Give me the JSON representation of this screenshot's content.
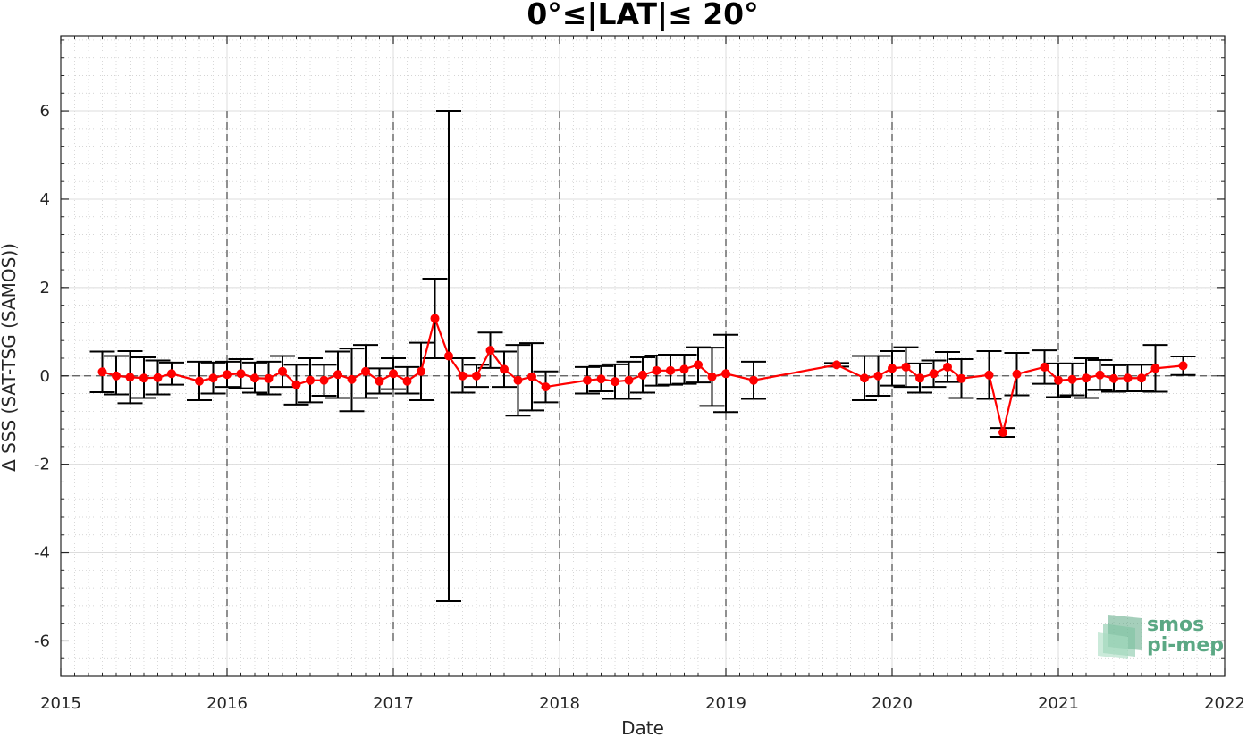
{
  "chart_data": {
    "type": "line",
    "title": "0°≤|LAT|≤ 20°",
    "xlabel": "Date",
    "ylabel": "Δ SSS (SAT-TSG (SAMOS))",
    "xlim": [
      2015,
      2022
    ],
    "ylim": [
      -6.8,
      7.7
    ],
    "x_ticks": [
      "2015",
      "2016",
      "2017",
      "2018",
      "2019",
      "2020",
      "2021",
      "2022"
    ],
    "y_ticks": [
      "-6",
      "-4",
      "-2",
      "0",
      "2",
      "4",
      "6"
    ],
    "grid": true,
    "reference_line_y": 0,
    "year_divider_lines": [
      "2016",
      "2017",
      "2018",
      "2019",
      "2020",
      "2021"
    ],
    "series": [
      {
        "color": "#ff0000",
        "errorbar_color": "#000000",
        "points": [
          {
            "x": "2015-04",
            "y": 0.09,
            "low": -0.37,
            "high": 0.55
          },
          {
            "x": "2015-05",
            "y": 0.0,
            "low": -0.42,
            "high": 0.45
          },
          {
            "x": "2015-06",
            "y": -0.03,
            "low": -0.62,
            "high": 0.56
          },
          {
            "x": "2015-07",
            "y": -0.05,
            "low": -0.5,
            "high": 0.42
          },
          {
            "x": "2015-08",
            "y": -0.04,
            "low": -0.42,
            "high": 0.35
          },
          {
            "x": "2015-09",
            "y": 0.05,
            "low": -0.2,
            "high": 0.3
          },
          {
            "x": "2015-11",
            "y": -0.12,
            "low": -0.55,
            "high": 0.32
          },
          {
            "x": "2015-12",
            "y": -0.05,
            "low": -0.4,
            "high": 0.3
          },
          {
            "x": "2016-01",
            "y": 0.03,
            "low": -0.25,
            "high": 0.32
          },
          {
            "x": "2016-02",
            "y": 0.05,
            "low": -0.28,
            "high": 0.38
          },
          {
            "x": "2016-03",
            "y": -0.05,
            "low": -0.38,
            "high": 0.3
          },
          {
            "x": "2016-04",
            "y": -0.06,
            "low": -0.42,
            "high": 0.32
          },
          {
            "x": "2016-05",
            "y": 0.1,
            "low": -0.25,
            "high": 0.45
          },
          {
            "x": "2016-06",
            "y": -0.2,
            "low": -0.65,
            "high": 0.25
          },
          {
            "x": "2016-07",
            "y": -0.1,
            "low": -0.6,
            "high": 0.4
          },
          {
            "x": "2016-08",
            "y": -0.1,
            "low": -0.45,
            "high": 0.25
          },
          {
            "x": "2016-09",
            "y": 0.03,
            "low": -0.5,
            "high": 0.55
          },
          {
            "x": "2016-10",
            "y": -0.08,
            "low": -0.8,
            "high": 0.62
          },
          {
            "x": "2016-11",
            "y": 0.1,
            "low": -0.5,
            "high": 0.7
          },
          {
            "x": "2016-12",
            "y": -0.12,
            "low": -0.4,
            "high": 0.17
          },
          {
            "x": "2017-01",
            "y": 0.05,
            "low": -0.3,
            "high": 0.4
          },
          {
            "x": "2017-02",
            "y": -0.12,
            "low": -0.4,
            "high": 0.2
          },
          {
            "x": "2017-03",
            "y": 0.1,
            "low": -0.55,
            "high": 0.75
          },
          {
            "x": "2017-04",
            "y": 1.3,
            "low": 0.4,
            "high": 2.2
          },
          {
            "x": "2017-05",
            "y": 0.45,
            "low": -5.1,
            "high": 6.0
          },
          {
            "x": "2017-06",
            "y": 0.0,
            "low": -0.38,
            "high": 0.4
          },
          {
            "x": "2017-07",
            "y": 0.0,
            "low": -0.25,
            "high": 0.25
          },
          {
            "x": "2017-08",
            "y": 0.58,
            "low": 0.18,
            "high": 0.98
          },
          {
            "x": "2017-09",
            "y": 0.15,
            "low": -0.25,
            "high": 0.55
          },
          {
            "x": "2017-10",
            "y": -0.1,
            "low": -0.9,
            "high": 0.7
          },
          {
            "x": "2017-11",
            "y": -0.02,
            "low": -0.78,
            "high": 0.74
          },
          {
            "x": "2017-12",
            "y": -0.25,
            "low": -0.6,
            "high": 0.1
          },
          {
            "x": "2018-03",
            "y": -0.1,
            "low": -0.4,
            "high": 0.2
          },
          {
            "x": "2018-04",
            "y": -0.07,
            "low": -0.35,
            "high": 0.22
          },
          {
            "x": "2018-05",
            "y": -0.13,
            "low": -0.52,
            "high": 0.26
          },
          {
            "x": "2018-06",
            "y": -0.1,
            "low": -0.52,
            "high": 0.32
          },
          {
            "x": "2018-07",
            "y": 0.02,
            "low": -0.38,
            "high": 0.42
          },
          {
            "x": "2018-08",
            "y": 0.12,
            "low": -0.22,
            "high": 0.46
          },
          {
            "x": "2018-09",
            "y": 0.12,
            "low": -0.2,
            "high": 0.48
          },
          {
            "x": "2018-10",
            "y": 0.15,
            "low": -0.18,
            "high": 0.48
          },
          {
            "x": "2018-11",
            "y": 0.25,
            "low": -0.15,
            "high": 0.65
          },
          {
            "x": "2018-12",
            "y": -0.02,
            "low": -0.68,
            "high": 0.64
          },
          {
            "x": "2019-01",
            "y": 0.05,
            "low": -0.82,
            "high": 0.93
          },
          {
            "x": "2019-03",
            "y": -0.1,
            "low": -0.52,
            "high": 0.32
          },
          {
            "x": "2019-09",
            "y": 0.25,
            "low": 0.21,
            "high": 0.29
          },
          {
            "x": "2019-11",
            "y": -0.05,
            "low": -0.55,
            "high": 0.45
          },
          {
            "x": "2019-12",
            "y": 0.0,
            "low": -0.45,
            "high": 0.45
          },
          {
            "x": "2020-01",
            "y": 0.17,
            "low": -0.22,
            "high": 0.56
          },
          {
            "x": "2020-02",
            "y": 0.2,
            "low": -0.25,
            "high": 0.65
          },
          {
            "x": "2020-03",
            "y": -0.05,
            "low": -0.38,
            "high": 0.28
          },
          {
            "x": "2020-04",
            "y": 0.05,
            "low": -0.25,
            "high": 0.35
          },
          {
            "x": "2020-05",
            "y": 0.2,
            "low": -0.14,
            "high": 0.54
          },
          {
            "x": "2020-06",
            "y": -0.06,
            "low": -0.5,
            "high": 0.38
          },
          {
            "x": "2020-08",
            "y": 0.02,
            "low": -0.52,
            "high": 0.56
          },
          {
            "x": "2020-09",
            "y": -1.28,
            "low": -1.38,
            "high": -1.18
          },
          {
            "x": "2020-10",
            "y": 0.04,
            "low": -0.44,
            "high": 0.52
          },
          {
            "x": "2020-12",
            "y": 0.2,
            "low": -0.18,
            "high": 0.58
          },
          {
            "x": "2021-01",
            "y": -0.1,
            "low": -0.48,
            "high": 0.28
          },
          {
            "x": "2021-02",
            "y": -0.08,
            "low": -0.44,
            "high": 0.28
          },
          {
            "x": "2021-03",
            "y": -0.05,
            "low": -0.5,
            "high": 0.4
          },
          {
            "x": "2021-04",
            "y": 0.02,
            "low": -0.32,
            "high": 0.36
          },
          {
            "x": "2021-05",
            "y": -0.06,
            "low": -0.36,
            "high": 0.24
          },
          {
            "x": "2021-06",
            "y": -0.05,
            "low": -0.35,
            "high": 0.25
          },
          {
            "x": "2021-07",
            "y": -0.05,
            "low": -0.35,
            "high": 0.25
          },
          {
            "x": "2021-08",
            "y": 0.17,
            "low": -0.36,
            "high": 0.7
          },
          {
            "x": "2021-10",
            "y": 0.23,
            "low": 0.02,
            "high": 0.44
          }
        ]
      }
    ]
  },
  "logo": {
    "line1": "smos",
    "line2": "pi-mep",
    "color": "#5ba884"
  }
}
